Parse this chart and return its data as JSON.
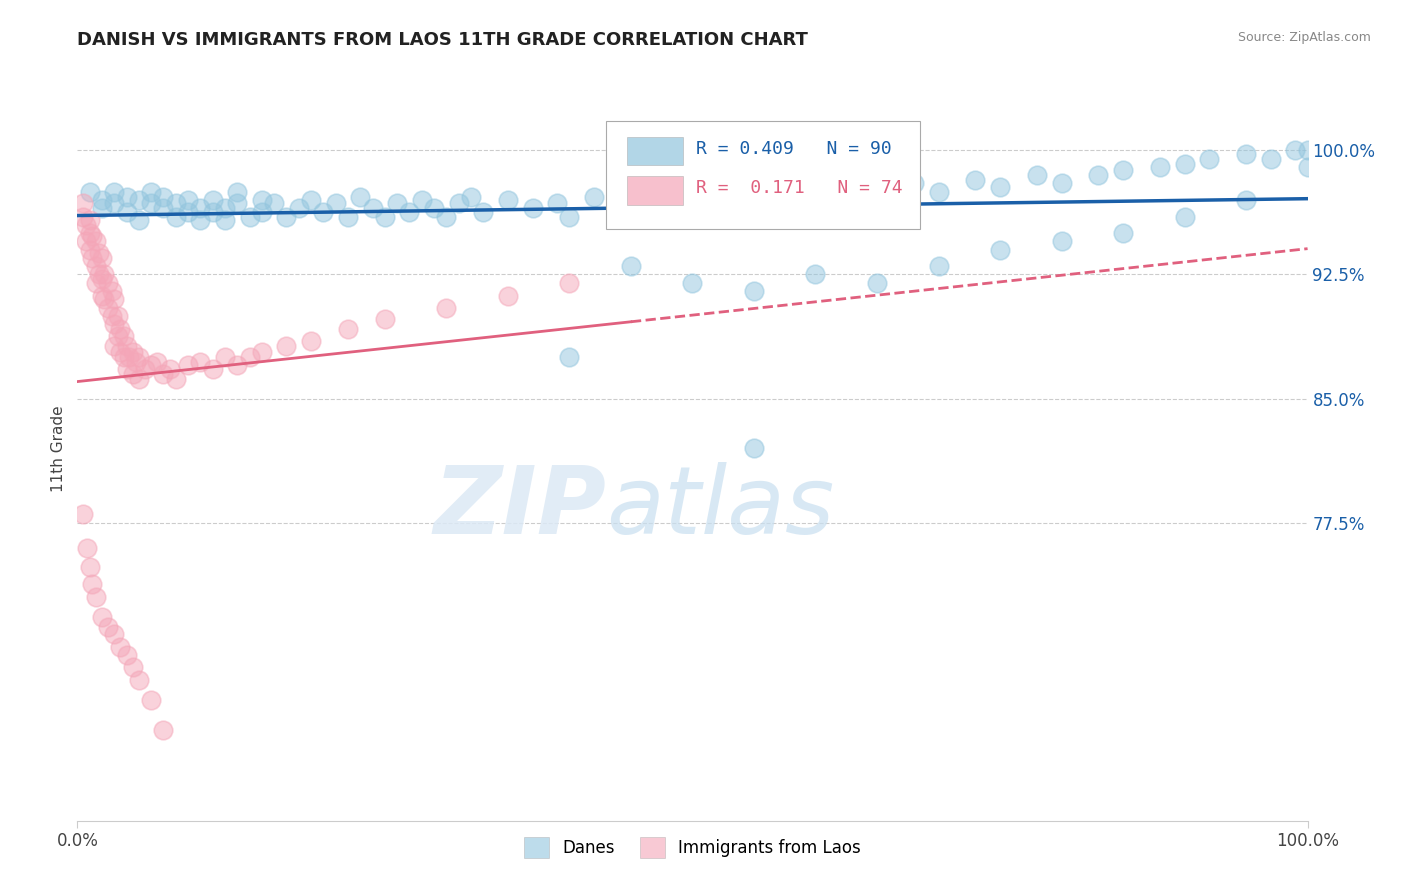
{
  "title": "DANISH VS IMMIGRANTS FROM LAOS 11TH GRADE CORRELATION CHART",
  "source": "Source: ZipAtlas.com",
  "ylabel": "11th Grade",
  "legend_blue_label": "Danes",
  "legend_pink_label": "Immigrants from Laos",
  "R_blue": 0.409,
  "N_blue": 90,
  "R_pink": 0.171,
  "N_pink": 74,
  "blue_color": "#92c5de",
  "pink_color": "#f4a6b8",
  "blue_line_color": "#1a5fa8",
  "pink_line_color": "#e0607e",
  "xmin": 0.0,
  "xmax": 1.0,
  "ymin": 0.595,
  "ymax": 1.045,
  "yticks": [
    0.775,
    0.85,
    0.925,
    1.0
  ],
  "ytick_labels": [
    "77.5%",
    "85.0%",
    "92.5%",
    "100.0%"
  ],
  "grid_color": "#cccccc",
  "background_color": "#ffffff",
  "title_fontsize": 13,
  "axis_label_fontsize": 11,
  "watermark_color": "#dce9f5",
  "blue_x": [
    0.01,
    0.02,
    0.02,
    0.03,
    0.03,
    0.04,
    0.04,
    0.05,
    0.05,
    0.06,
    0.06,
    0.07,
    0.07,
    0.08,
    0.08,
    0.09,
    0.09,
    0.1,
    0.1,
    0.11,
    0.11,
    0.12,
    0.12,
    0.13,
    0.13,
    0.14,
    0.15,
    0.15,
    0.16,
    0.17,
    0.18,
    0.19,
    0.2,
    0.21,
    0.22,
    0.23,
    0.24,
    0.25,
    0.26,
    0.27,
    0.28,
    0.29,
    0.3,
    0.31,
    0.32,
    0.33,
    0.35,
    0.37,
    0.39,
    0.4,
    0.42,
    0.44,
    0.46,
    0.48,
    0.5,
    0.52,
    0.55,
    0.58,
    0.6,
    0.63,
    0.65,
    0.68,
    0.7,
    0.73,
    0.75,
    0.78,
    0.8,
    0.83,
    0.85,
    0.88,
    0.9,
    0.92,
    0.95,
    0.97,
    0.99,
    1.0,
    0.45,
    0.5,
    0.55,
    0.6,
    0.65,
    0.7,
    0.75,
    0.8,
    0.85,
    0.9,
    0.95,
    1.0,
    0.4,
    0.55
  ],
  "blue_y": [
    0.975,
    0.97,
    0.965,
    0.975,
    0.968,
    0.972,
    0.963,
    0.97,
    0.958,
    0.968,
    0.975,
    0.965,
    0.972,
    0.96,
    0.968,
    0.963,
    0.97,
    0.958,
    0.965,
    0.963,
    0.97,
    0.965,
    0.958,
    0.968,
    0.975,
    0.96,
    0.97,
    0.963,
    0.968,
    0.96,
    0.965,
    0.97,
    0.963,
    0.968,
    0.96,
    0.972,
    0.965,
    0.96,
    0.968,
    0.963,
    0.97,
    0.965,
    0.96,
    0.968,
    0.972,
    0.963,
    0.97,
    0.965,
    0.968,
    0.96,
    0.972,
    0.968,
    0.975,
    0.97,
    0.968,
    0.972,
    0.975,
    0.97,
    0.972,
    0.975,
    0.978,
    0.98,
    0.975,
    0.982,
    0.978,
    0.985,
    0.98,
    0.985,
    0.988,
    0.99,
    0.992,
    0.995,
    0.998,
    0.995,
    1.0,
    1.0,
    0.93,
    0.92,
    0.915,
    0.925,
    0.92,
    0.93,
    0.94,
    0.945,
    0.95,
    0.96,
    0.97,
    0.99,
    0.875,
    0.82
  ],
  "pink_x": [
    0.005,
    0.005,
    0.007,
    0.007,
    0.01,
    0.01,
    0.01,
    0.012,
    0.012,
    0.015,
    0.015,
    0.015,
    0.018,
    0.018,
    0.02,
    0.02,
    0.02,
    0.022,
    0.022,
    0.025,
    0.025,
    0.028,
    0.028,
    0.03,
    0.03,
    0.03,
    0.033,
    0.033,
    0.035,
    0.035,
    0.038,
    0.038,
    0.04,
    0.04,
    0.042,
    0.045,
    0.045,
    0.048,
    0.05,
    0.05,
    0.055,
    0.06,
    0.065,
    0.07,
    0.075,
    0.08,
    0.09,
    0.1,
    0.11,
    0.12,
    0.13,
    0.14,
    0.15,
    0.17,
    0.19,
    0.22,
    0.25,
    0.3,
    0.35,
    0.4,
    0.005,
    0.008,
    0.01,
    0.012,
    0.015,
    0.02,
    0.025,
    0.03,
    0.035,
    0.04,
    0.045,
    0.05,
    0.06,
    0.07
  ],
  "pink_y": [
    0.968,
    0.96,
    0.955,
    0.945,
    0.958,
    0.95,
    0.94,
    0.948,
    0.935,
    0.945,
    0.93,
    0.92,
    0.938,
    0.925,
    0.935,
    0.922,
    0.912,
    0.925,
    0.91,
    0.92,
    0.905,
    0.915,
    0.9,
    0.91,
    0.895,
    0.882,
    0.9,
    0.888,
    0.892,
    0.878,
    0.888,
    0.875,
    0.882,
    0.868,
    0.875,
    0.878,
    0.865,
    0.872,
    0.875,
    0.862,
    0.868,
    0.87,
    0.872,
    0.865,
    0.868,
    0.862,
    0.87,
    0.872,
    0.868,
    0.875,
    0.87,
    0.875,
    0.878,
    0.882,
    0.885,
    0.892,
    0.898,
    0.905,
    0.912,
    0.92,
    0.78,
    0.76,
    0.748,
    0.738,
    0.73,
    0.718,
    0.712,
    0.708,
    0.7,
    0.695,
    0.688,
    0.68,
    0.668,
    0.65
  ]
}
